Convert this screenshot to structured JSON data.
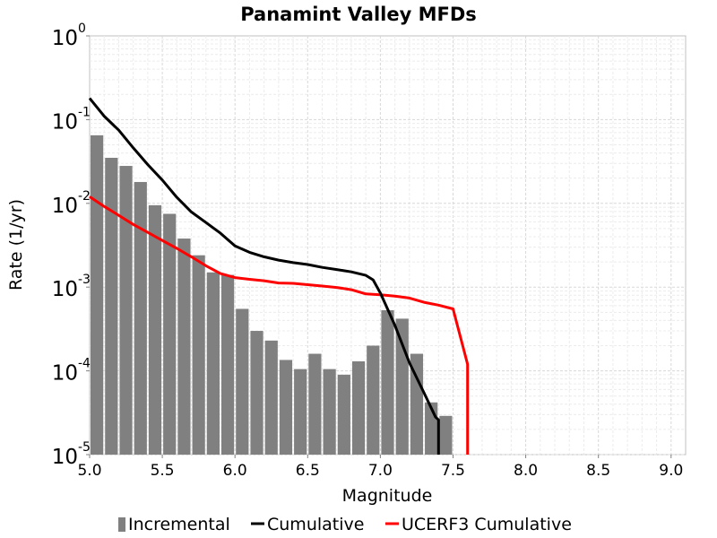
{
  "chart_data": {
    "type": "bar+line",
    "title": "Panamint Valley MFDs",
    "xlabel": "Magnitude",
    "ylabel": "Rate (1/yr)",
    "xlim": [
      5.0,
      9.1
    ],
    "ylim": [
      1e-05,
      1
    ],
    "yscale": "log",
    "grid": true,
    "legend_position": "bottom",
    "xticks": [
      "5.0",
      "5.5",
      "6.0",
      "6.5",
      "7.0",
      "7.5",
      "8.0",
      "8.5",
      "9.0"
    ],
    "yticks": [
      {
        "base": "10",
        "exp": "0"
      },
      {
        "base": "10",
        "exp": "-1"
      },
      {
        "base": "10",
        "exp": "-2"
      },
      {
        "base": "10",
        "exp": "-3"
      },
      {
        "base": "10",
        "exp": "-4"
      },
      {
        "base": "10",
        "exp": "-5"
      }
    ],
    "incremental": {
      "name": "Incremental",
      "color": "#808080",
      "x": [
        5.05,
        5.15,
        5.25,
        5.35,
        5.45,
        5.55,
        5.65,
        5.75,
        5.85,
        5.95,
        6.05,
        6.15,
        6.25,
        6.35,
        6.45,
        6.55,
        6.65,
        6.75,
        6.85,
        6.95,
        7.05,
        7.15,
        7.25,
        7.35,
        7.45
      ],
      "values": [
        0.065,
        0.035,
        0.028,
        0.018,
        0.0095,
        0.0075,
        0.0038,
        0.0024,
        0.0015,
        0.0014,
        0.00055,
        0.0003,
        0.00023,
        0.000135,
        0.000105,
        0.00016,
        0.000105,
        9e-05,
        0.00013,
        0.0002,
        0.00053,
        0.00042,
        0.00016,
        4.2e-05,
        2.9e-05
      ]
    },
    "cumulative": {
      "name": "Cumulative",
      "color": "#000000",
      "x": [
        5.0,
        5.1,
        5.2,
        5.3,
        5.4,
        5.5,
        5.6,
        5.7,
        5.8,
        5.9,
        6.0,
        6.1,
        6.2,
        6.3,
        6.4,
        6.5,
        6.6,
        6.7,
        6.8,
        6.9,
        6.95,
        7.0,
        7.1,
        7.2,
        7.3,
        7.38,
        7.4,
        7.4
      ],
      "values": [
        0.18,
        0.11,
        0.075,
        0.046,
        0.029,
        0.019,
        0.0118,
        0.0079,
        0.0059,
        0.0044,
        0.0031,
        0.0026,
        0.0023,
        0.0021,
        0.00196,
        0.00186,
        0.00172,
        0.00162,
        0.00152,
        0.00138,
        0.00122,
        0.00085,
        0.00035,
        0.000125,
        5.5e-05,
        2.8e-05,
        2.6e-05,
        1e-05
      ]
    },
    "ucerf3": {
      "name": "UCERF3 Cumulative",
      "color": "#ff0000",
      "x": [
        5.0,
        5.1,
        5.2,
        5.3,
        5.4,
        5.5,
        5.6,
        5.7,
        5.8,
        5.9,
        6.0,
        6.1,
        6.2,
        6.3,
        6.4,
        6.5,
        6.6,
        6.7,
        6.8,
        6.9,
        7.0,
        7.1,
        7.2,
        7.3,
        7.4,
        7.5,
        7.6,
        7.6
      ],
      "values": [
        0.012,
        0.0092,
        0.0072,
        0.0056,
        0.0045,
        0.0036,
        0.0029,
        0.0023,
        0.0018,
        0.00145,
        0.0013,
        0.00124,
        0.00119,
        0.00112,
        0.00111,
        0.00107,
        0.00103,
        0.00099,
        0.00093,
        0.00083,
        0.00081,
        0.00078,
        0.00074,
        0.00066,
        0.00061,
        0.00055,
        0.00012,
        1e-05
      ]
    }
  }
}
